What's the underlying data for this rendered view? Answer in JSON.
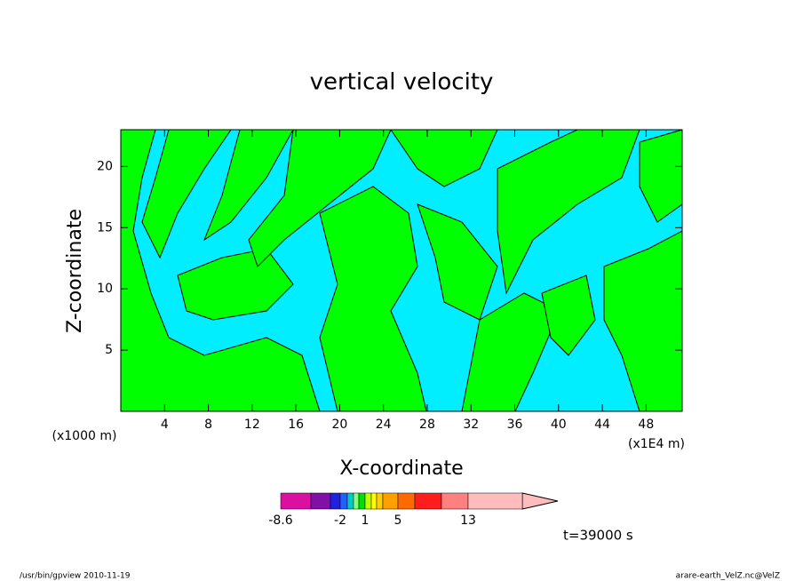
{
  "chart_data": {
    "type": "contour",
    "title": "vertical velocity",
    "x_label": "X-coordinate",
    "y_label": "Z-coordinate",
    "x_unit": "(x1E4 m)",
    "y_unit": "(x1000 m)",
    "xlim": [
      0,
      51.3
    ],
    "ylim": [
      0,
      23
    ],
    "xticks": [
      4,
      8,
      12,
      16,
      20,
      24,
      28,
      32,
      36,
      40,
      44,
      48
    ],
    "yticks": [
      5,
      10,
      15,
      20
    ],
    "colorbar": {
      "colors": [
        "#dc10a0",
        "#8010a8",
        "#2020e0",
        "#2060ff",
        "#00c8c8",
        "#80ff80",
        "#00e000",
        "#c0ff00",
        "#ffff00",
        "#ffd000",
        "#ffa000",
        "#ff6a00",
        "#ff1c1c",
        "#ff8080",
        "#ffbcbc"
      ],
      "labels": [
        -8.6,
        -2,
        1,
        5,
        13
      ]
    },
    "time_label": "t=39000 s",
    "footer_left": "/usr/bin/gpview   2010-11-19",
    "footer_right": "arare-earth_VelZ.nc@VelZ"
  }
}
